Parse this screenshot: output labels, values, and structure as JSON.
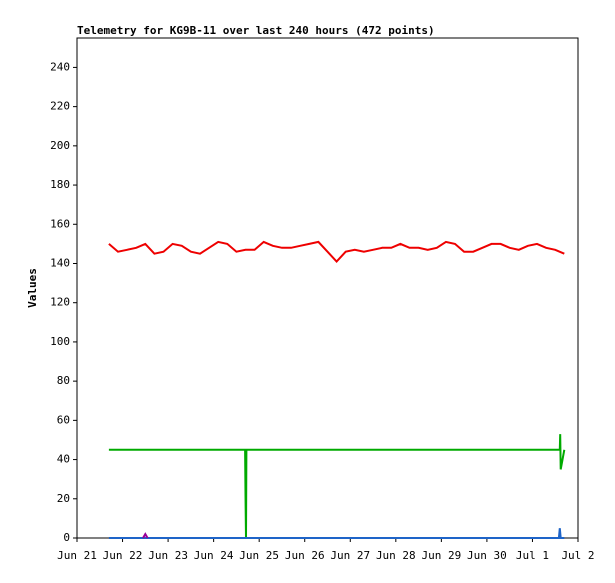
{
  "chart_data": {
    "type": "line",
    "title": "Telemetry for KG9B-11 over last 240 hours (472 points)",
    "y_label": "Values",
    "xlim": [
      0,
      11
    ],
    "xticks": [
      {
        "value": 0,
        "label": "Jun 21"
      },
      {
        "value": 1,
        "label": "Jun 22"
      },
      {
        "value": 2,
        "label": "Jun 23"
      },
      {
        "value": 3,
        "label": "Jun 24"
      },
      {
        "value": 4,
        "label": "Jun 25"
      },
      {
        "value": 5,
        "label": "Jun 26"
      },
      {
        "value": 6,
        "label": "Jun 27"
      },
      {
        "value": 7,
        "label": "Jun 28"
      },
      {
        "value": 8,
        "label": "Jun 29"
      },
      {
        "value": 9,
        "label": "Jun 30"
      },
      {
        "value": 10,
        "label": "Jul 1"
      },
      {
        "value": 11,
        "label": "Jul 2"
      }
    ],
    "ylim": [
      0,
      255
    ],
    "yticks": [
      0,
      20,
      40,
      60,
      80,
      100,
      120,
      140,
      160,
      180,
      200,
      220,
      240
    ],
    "series": [
      {
        "color": "#ee0000",
        "x": [
          0.7,
          0.9,
          1.1,
          1.3,
          1.5,
          1.7,
          1.9,
          2.1,
          2.3,
          2.5,
          2.7,
          2.9,
          3.1,
          3.3,
          3.5,
          3.7,
          3.9,
          4.1,
          4.3,
          4.5,
          4.7,
          4.9,
          5.1,
          5.3,
          5.5,
          5.7,
          5.9,
          6.1,
          6.3,
          6.5,
          6.7,
          6.9,
          7.1,
          7.3,
          7.5,
          7.7,
          7.9,
          8.1,
          8.3,
          8.5,
          8.7,
          8.9,
          9.1,
          9.3,
          9.5,
          9.7,
          9.9,
          10.1,
          10.3,
          10.5,
          10.7
        ],
        "values": [
          150,
          146,
          147,
          148,
          150,
          145,
          146,
          150,
          149,
          146,
          145,
          148,
          151,
          150,
          146,
          147,
          147,
          151,
          149,
          148,
          148,
          149,
          150,
          151,
          146,
          141,
          146,
          147,
          146,
          147,
          148,
          148,
          150,
          148,
          148,
          147,
          148,
          151,
          150,
          146,
          146,
          148,
          150,
          150,
          148,
          147,
          149,
          150,
          148,
          147,
          145
        ]
      },
      {
        "color": "#00aa00",
        "x": [
          0.7,
          3.69,
          3.7,
          3.71,
          3.72,
          10.6,
          10.61,
          10.62,
          10.7
        ],
        "values": [
          45,
          45,
          22,
          0,
          45,
          45,
          53,
          35,
          45
        ]
      },
      {
        "color": "#1e64c8",
        "x": [
          0.7,
          10.58,
          10.6,
          10.62,
          10.7
        ],
        "values": [
          0,
          0,
          5,
          0,
          0
        ]
      },
      {
        "color": "#990099",
        "x": [
          1.45,
          1.5,
          1.55
        ],
        "values": [
          0,
          2,
          0
        ]
      }
    ]
  }
}
